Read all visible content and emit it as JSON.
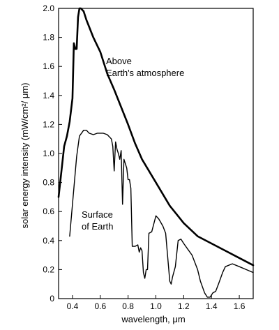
{
  "chart_data": {
    "type": "line",
    "xlabel": "wavelength,  μm",
    "ylabel": "solar energy intensity  (mW/cm²/ μm)",
    "xlim": [
      0.3,
      1.7
    ],
    "ylim": [
      0,
      2.0
    ],
    "xticks": [
      "0.4",
      "0.6",
      "0.8",
      "1.0",
      "1.2",
      "1.4",
      "1.6"
    ],
    "yticks": [
      "0",
      "0.2",
      "0.4",
      "0.6",
      "0.8",
      "1.0",
      "1.2",
      "1.4",
      "1.6",
      "1.8",
      "2.0"
    ],
    "grid": false,
    "annotations": {
      "above_line1": "Above",
      "above_line2": "Earth's atmosphere",
      "surface_line1": "Surface",
      "surface_line2": "of Earth"
    },
    "series": [
      {
        "key": "above",
        "color": "#000000",
        "x": [
          0.3,
          0.34,
          0.36,
          0.38,
          0.4,
          0.41,
          0.42,
          0.43,
          0.44,
          0.45,
          0.46,
          0.48,
          0.5,
          0.55,
          0.6,
          0.65,
          0.7,
          0.8,
          0.85,
          0.9,
          1.0,
          1.1,
          1.2,
          1.3,
          1.4,
          1.5,
          1.6,
          1.7
        ],
        "y": [
          0.7,
          1.05,
          1.12,
          1.22,
          1.38,
          1.76,
          1.72,
          1.72,
          1.94,
          2.0,
          2.0,
          1.98,
          1.92,
          1.8,
          1.7,
          1.55,
          1.44,
          1.2,
          1.07,
          0.96,
          0.8,
          0.64,
          0.52,
          0.43,
          0.38,
          0.33,
          0.28,
          0.23
        ]
      },
      {
        "key": "surface",
        "color": "#000000",
        "x": [
          0.38,
          0.4,
          0.43,
          0.45,
          0.48,
          0.5,
          0.52,
          0.55,
          0.58,
          0.62,
          0.65,
          0.68,
          0.69,
          0.7,
          0.71,
          0.72,
          0.73,
          0.74,
          0.75,
          0.76,
          0.77,
          0.78,
          0.79,
          0.8,
          0.81,
          0.82,
          0.83,
          0.85,
          0.87,
          0.88,
          0.89,
          0.9,
          0.91,
          0.92,
          0.93,
          0.94,
          0.95,
          0.97,
          1.0,
          1.02,
          1.05,
          1.07,
          1.1,
          1.11,
          1.12,
          1.14,
          1.16,
          1.18,
          1.2,
          1.23,
          1.26,
          1.3,
          1.32,
          1.35,
          1.37,
          1.39,
          1.41,
          1.43,
          1.45,
          1.48,
          1.5,
          1.55,
          1.6,
          1.65,
          1.7
        ],
        "y": [
          0.43,
          0.65,
          0.98,
          1.12,
          1.16,
          1.16,
          1.14,
          1.13,
          1.14,
          1.14,
          1.13,
          1.1,
          1.05,
          0.88,
          1.08,
          1.03,
          1.0,
          0.96,
          1.02,
          0.65,
          0.96,
          0.93,
          0.9,
          0.82,
          0.82,
          0.76,
          0.36,
          0.36,
          0.37,
          0.32,
          0.35,
          0.33,
          0.18,
          0.14,
          0.2,
          0.2,
          0.45,
          0.46,
          0.57,
          0.55,
          0.5,
          0.45,
          0.12,
          0.1,
          0.15,
          0.22,
          0.4,
          0.41,
          0.38,
          0.34,
          0.3,
          0.2,
          0.12,
          0.04,
          0.01,
          0.01,
          0.04,
          0.05,
          0.1,
          0.18,
          0.22,
          0.24,
          0.22,
          0.2,
          0.18
        ]
      }
    ]
  }
}
